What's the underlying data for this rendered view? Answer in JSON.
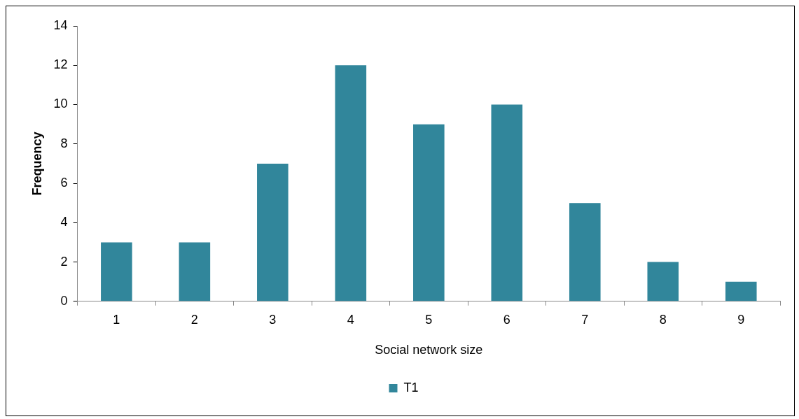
{
  "chart_data": {
    "type": "bar",
    "xlabel": "Social network size",
    "ylabel": "Frequency",
    "categories": [
      "1",
      "2",
      "3",
      "4",
      "5",
      "6",
      "7",
      "8",
      "9"
    ],
    "series": [
      {
        "name": "T1",
        "color": "#31869b",
        "values": [
          3,
          3,
          7,
          12,
          9,
          10,
          5,
          2,
          1
        ]
      }
    ],
    "ylim": [
      0,
      14
    ],
    "yticks": [
      0,
      2,
      4,
      6,
      8,
      10,
      12,
      14
    ],
    "grid": false,
    "legend": "bottom"
  }
}
